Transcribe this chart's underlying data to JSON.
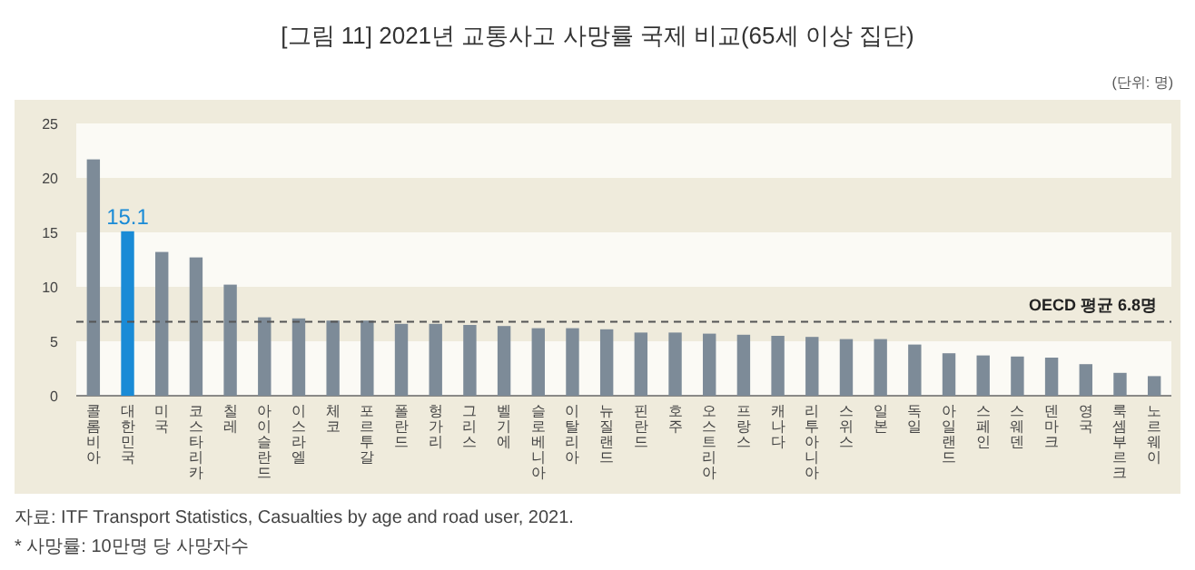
{
  "chart_data": {
    "type": "bar",
    "title": "[그림 11] 2021년 교통사고 사망률 국제 비교(65세 이상 집단)",
    "subtitle": "(단위: 명)",
    "categories": [
      "콜롬비아",
      "대한민국",
      "미국",
      "코스타리카",
      "칠레",
      "아이슬란드",
      "이스라엘",
      "체코",
      "포르투갈",
      "폴란드",
      "헝가리",
      "그리스",
      "벨기에",
      "슬로베니아",
      "이탈리아",
      "뉴질랜드",
      "핀란드",
      "호주",
      "오스트리아",
      "프랑스",
      "캐나다",
      "리투아니아",
      "스위스",
      "일본",
      "독일",
      "아일랜드",
      "스페인",
      "스웨덴",
      "덴마크",
      "영국",
      "룩셈부르크",
      "노르웨이"
    ],
    "values": [
      21.7,
      15.1,
      13.2,
      12.7,
      10.2,
      7.2,
      7.1,
      6.9,
      6.9,
      6.6,
      6.6,
      6.5,
      6.4,
      6.2,
      6.2,
      6.1,
      5.8,
      5.8,
      5.7,
      5.6,
      5.5,
      5.4,
      5.2,
      5.2,
      4.7,
      3.9,
      3.7,
      3.6,
      3.5,
      2.9,
      2.1,
      1.8
    ],
    "colors": [
      "#7d8b98",
      "#1a8bd6",
      "#7d8b98",
      "#7d8b98",
      "#7d8b98",
      "#7d8b98",
      "#7d8b98",
      "#7d8b98",
      "#7d8b98",
      "#7d8b98",
      "#7d8b98",
      "#7d8b98",
      "#7d8b98",
      "#7d8b98",
      "#7d8b98",
      "#7d8b98",
      "#7d8b98",
      "#7d8b98",
      "#7d8b98",
      "#7d8b98",
      "#7d8b98",
      "#7d8b98",
      "#7d8b98",
      "#7d8b98",
      "#7d8b98",
      "#7d8b98",
      "#7d8b98",
      "#7d8b98",
      "#7d8b98",
      "#7d8b98",
      "#7d8b98",
      "#7d8b98"
    ],
    "value_labels": [
      null,
      "15.1",
      null,
      null,
      null,
      null,
      null,
      null,
      null,
      null,
      null,
      null,
      null,
      null,
      null,
      null,
      null,
      null,
      null,
      null,
      null,
      null,
      null,
      null,
      null,
      null,
      null,
      null,
      null,
      null,
      null,
      null
    ],
    "ylim": [
      0,
      25
    ],
    "yticks": [
      0,
      5,
      10,
      15,
      20,
      25
    ],
    "ref_lines": [
      {
        "axis": "y",
        "value": 6.8,
        "label": "OECD 평균 6.8명",
        "color": "#555555",
        "line_style": "dashed"
      }
    ],
    "annotations": [
      "자료: ITF Transport Statistics, Casualties by age and road user, 2021.",
      "* 사망률: 10만명 당 사망자수"
    ]
  }
}
